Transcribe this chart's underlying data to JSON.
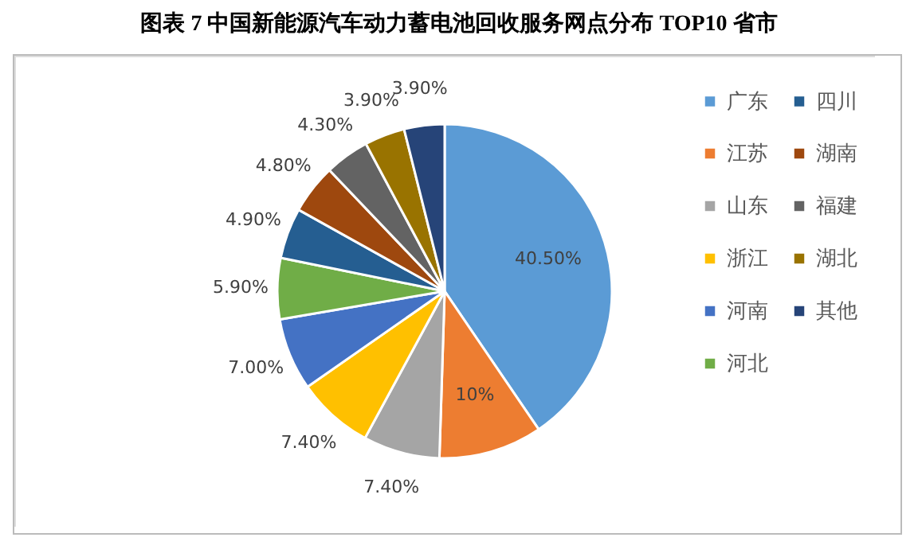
{
  "chart_data": {
    "type": "pie",
    "title": "图表 7    中国新能源汽车动力蓄电池回收服务网点分布 TOP10 省市",
    "categories": [
      "广东",
      "江苏",
      "山东",
      "浙江",
      "河南",
      "河北",
      "四川",
      "湖南",
      "福建",
      "湖北",
      "其他"
    ],
    "values": [
      40.5,
      10,
      7.4,
      7.4,
      7.0,
      5.9,
      4.9,
      4.8,
      4.3,
      3.9,
      3.9
    ],
    "value_labels": [
      "40.50%",
      "10%",
      "7.40%",
      "7.40%",
      "7.00%",
      "5.90%",
      "4.90%",
      "4.80%",
      "4.30%",
      "3.90%",
      "3.90%"
    ],
    "colors": [
      "#5b9bd5",
      "#ed7d31",
      "#a5a5a5",
      "#ffc000",
      "#4472c4",
      "#70ad47",
      "#255e91",
      "#9e480e",
      "#636363",
      "#997300",
      "#264478"
    ],
    "legend": "right"
  }
}
